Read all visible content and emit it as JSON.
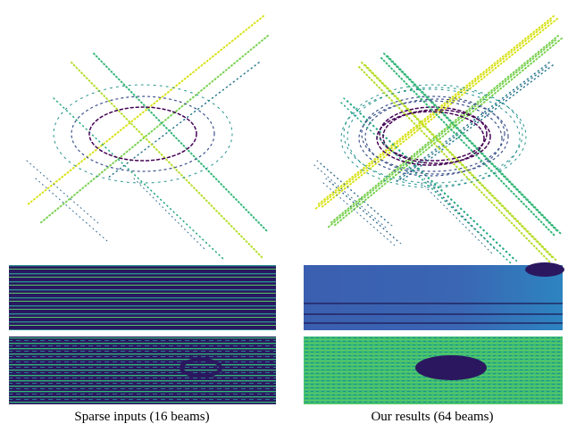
{
  "figure": {
    "captions": [
      "Sparse inputs (16 beams)",
      "Our results (64 beams)"
    ]
  }
}
